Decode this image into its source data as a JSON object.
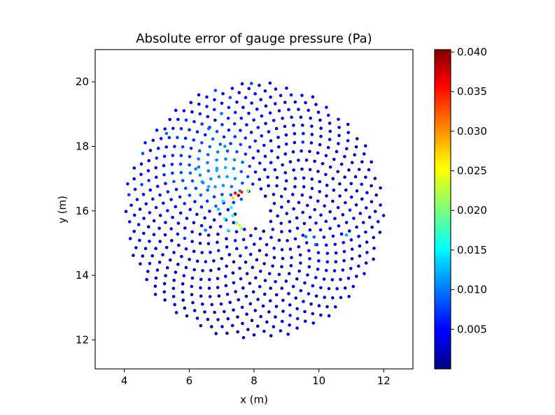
{
  "chart_data": {
    "type": "scatter",
    "title": "Absolute error of gauge pressure (Pa)",
    "xlabel": "x (m)",
    "ylabel": "y (m)",
    "xlim": [
      3.1,
      12.9
    ],
    "ylim": [
      11.1,
      21.0
    ],
    "xticks": [
      4,
      6,
      8,
      10,
      12
    ],
    "yticks": [
      12,
      14,
      16,
      18,
      20
    ],
    "grid": false,
    "colormap": "jet",
    "colorbar": {
      "vmin": 0.0,
      "vmax": 0.0403,
      "ticks": [
        0.005,
        0.01,
        0.015,
        0.02,
        0.025,
        0.03,
        0.035,
        0.04
      ],
      "tick_labels": [
        "0.005",
        "0.010",
        "0.015",
        "0.020",
        "0.025",
        "0.030",
        "0.035",
        "0.040"
      ]
    },
    "point_cloud": {
      "layout": "sunflower",
      "center": [
        8.0,
        16.0
      ],
      "outer_radius": 4.0,
      "inner_hole_radius": 0.5,
      "point_count": 700,
      "note_values_range": [
        0.0,
        0.0403
      ]
    },
    "points": [
      {
        "x": 7.52,
        "y": 16.48,
        "value": 0.04
      },
      {
        "x": 7.42,
        "y": 16.55,
        "value": 0.036
      },
      {
        "x": 7.62,
        "y": 16.58,
        "value": 0.034
      },
      {
        "x": 7.35,
        "y": 16.4,
        "value": 0.027
      },
      {
        "x": 7.8,
        "y": 16.62,
        "value": 0.022
      },
      {
        "x": 7.55,
        "y": 15.55,
        "value": 0.024
      },
      {
        "x": 7.62,
        "y": 15.45,
        "value": 0.02
      },
      {
        "x": 7.45,
        "y": 15.62,
        "value": 0.019
      },
      {
        "x": 7.35,
        "y": 15.85,
        "value": 0.017
      },
      {
        "x": 7.3,
        "y": 16.1,
        "value": 0.016
      },
      {
        "x": 7.2,
        "y": 15.4,
        "value": 0.016
      },
      {
        "x": 7.1,
        "y": 15.75,
        "value": 0.015
      },
      {
        "x": 7.05,
        "y": 16.3,
        "value": 0.014
      },
      {
        "x": 6.9,
        "y": 16.05,
        "value": 0.013
      },
      {
        "x": 6.6,
        "y": 16.75,
        "value": 0.012
      },
      {
        "x": 6.85,
        "y": 17.25,
        "value": 0.012
      },
      {
        "x": 6.4,
        "y": 16.9,
        "value": 0.011
      },
      {
        "x": 6.2,
        "y": 17.3,
        "value": 0.01
      },
      {
        "x": 7.1,
        "y": 18.0,
        "value": 0.011
      },
      {
        "x": 6.5,
        "y": 15.4,
        "value": 0.01
      },
      {
        "x": 9.6,
        "y": 15.2,
        "value": 0.01
      },
      {
        "x": 9.9,
        "y": 14.95,
        "value": 0.009
      },
      {
        "x": 10.85,
        "y": 15.25,
        "value": 0.012
      },
      {
        "x": 6.6,
        "y": 18.55,
        "value": 0.009
      },
      {
        "x": 5.3,
        "y": 18.4,
        "value": 0.009
      },
      {
        "x": 7.92,
        "y": 19.95,
        "value": 0.008
      }
    ]
  }
}
